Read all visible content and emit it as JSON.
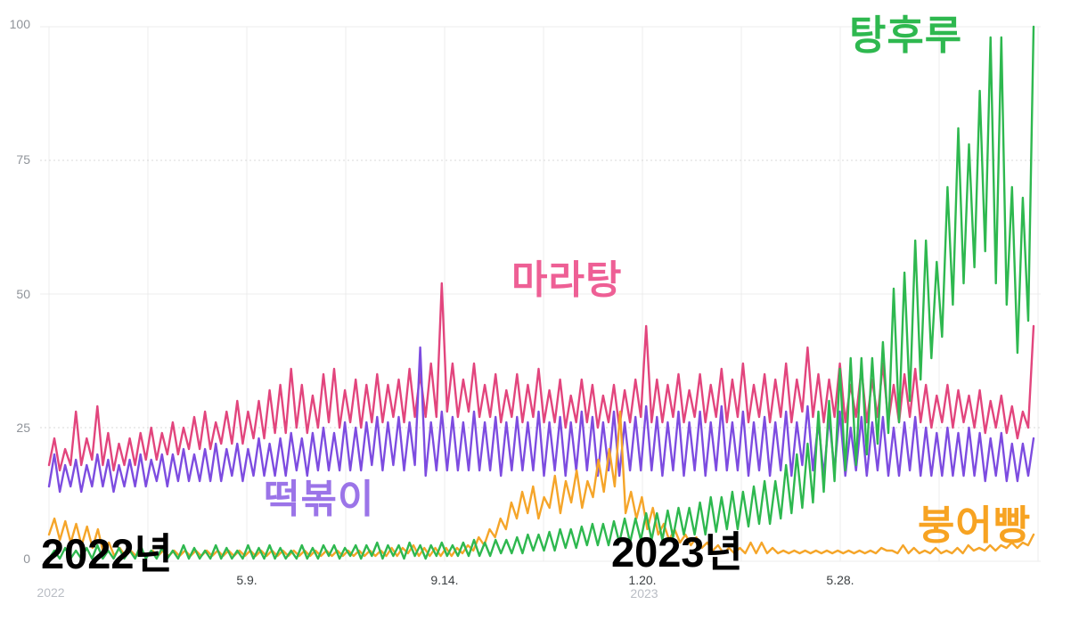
{
  "page": {
    "background": "#ffffff"
  },
  "chart_data": {
    "type": "line",
    "description": "Search-interest trend comparison of four Korean street foods, weekly oscillating daily data from start of 2022 to late 2023, scale 0-100",
    "grid": {
      "vertical_line_count": 11,
      "solid_color": "#ececec",
      "dashed_color": "#d8d8d8",
      "solid_levels": [
        0,
        50,
        100
      ],
      "dashed_levels": [
        25,
        75
      ]
    },
    "y_axis": {
      "min": 0,
      "max": 100,
      "tick_values": [
        100,
        75,
        50,
        25,
        0
      ],
      "ticks": [
        {
          "label": "100"
        },
        {
          "label": "75"
        },
        {
          "label": "50"
        },
        {
          "label": "25"
        },
        {
          "label": "0"
        }
      ]
    },
    "x_axis": {
      "ticks": [
        {
          "label": "5.9."
        },
        {
          "label": "9.14."
        },
        {
          "label": "1.20."
        },
        {
          "label": "5.28."
        }
      ],
      "year_labels": [
        {
          "label": "2022"
        },
        {
          "label": "2023"
        }
      ]
    },
    "series": [
      {
        "key": "malatang",
        "name": "마라탕",
        "color": "#e2457d",
        "weekly_low": [
          18,
          17,
          18,
          18,
          19,
          18,
          17,
          18,
          18,
          19,
          19,
          20,
          20,
          21,
          21,
          21,
          22,
          22,
          22,
          23,
          23,
          24,
          24,
          25,
          24,
          25,
          26,
          25,
          26,
          25,
          26,
          26,
          27,
          26,
          27,
          27,
          27,
          28,
          27,
          28,
          27,
          27,
          26,
          27,
          26,
          27,
          26,
          26,
          25,
          26,
          26,
          25,
          26,
          25,
          26,
          27,
          26,
          26,
          27,
          26,
          27,
          26,
          27,
          26,
          27,
          26,
          27,
          26,
          27,
          26,
          28,
          27,
          26,
          27,
          26,
          27,
          26,
          27,
          26,
          26,
          27,
          26,
          25,
          26,
          25,
          26,
          25,
          24,
          25,
          24,
          23,
          25
        ],
        "weekly_high": [
          23,
          21,
          28,
          23,
          29,
          24,
          22,
          23,
          24,
          25,
          24,
          26,
          25,
          27,
          28,
          26,
          28,
          30,
          28,
          30,
          32,
          33,
          36,
          33,
          31,
          35,
          36,
          32,
          34,
          33,
          35,
          33,
          34,
          36,
          35,
          37,
          52,
          37,
          34,
          37,
          33,
          35,
          32,
          35,
          33,
          36,
          32,
          34,
          31,
          34,
          33,
          31,
          33,
          32,
          34,
          44,
          34,
          33,
          35,
          32,
          35,
          33,
          36,
          34,
          37,
          33,
          35,
          34,
          37,
          34,
          40,
          35,
          34,
          37,
          33,
          36,
          34,
          37,
          33,
          35,
          36,
          33,
          31,
          33,
          32,
          31,
          32,
          30,
          31,
          29,
          28,
          44
        ]
      },
      {
        "key": "tteokbokki",
        "name": "떡볶이",
        "color": "#7d4ce0",
        "weekly_low": [
          14,
          13,
          14,
          13,
          14,
          14,
          13,
          14,
          14,
          14,
          15,
          14,
          15,
          15,
          15,
          15,
          15,
          16,
          15,
          16,
          16,
          16,
          16,
          17,
          16,
          17,
          17,
          17,
          17,
          17,
          18,
          17,
          18,
          17,
          18,
          16,
          17,
          17,
          17,
          17,
          17,
          17,
          16,
          17,
          17,
          17,
          16,
          17,
          16,
          17,
          17,
          16,
          17,
          16,
          17,
          17,
          17,
          16,
          17,
          16,
          17,
          16,
          17,
          17,
          17,
          16,
          17,
          16,
          17,
          16,
          18,
          17,
          16,
          17,
          16,
          17,
          16,
          17,
          16,
          16,
          17,
          16,
          16,
          16,
          16,
          16,
          16,
          15,
          16,
          15,
          15,
          16
        ],
        "weekly_high": [
          20,
          18,
          19,
          18,
          20,
          19,
          18,
          19,
          20,
          19,
          20,
          20,
          21,
          20,
          21,
          22,
          21,
          22,
          21,
          23,
          22,
          23,
          24,
          23,
          24,
          25,
          24,
          26,
          25,
          26,
          27,
          26,
          27,
          26,
          40,
          26,
          28,
          27,
          26,
          28,
          26,
          27,
          26,
          27,
          26,
          28,
          26,
          27,
          26,
          28,
          27,
          26,
          28,
          26,
          27,
          29,
          27,
          26,
          28,
          26,
          28,
          26,
          29,
          26,
          28,
          26,
          27,
          26,
          28,
          26,
          29,
          26,
          27,
          28,
          25,
          27,
          26,
          27,
          25,
          26,
          27,
          25,
          24,
          25,
          24,
          25,
          24,
          23,
          24,
          22,
          22,
          23
        ]
      },
      {
        "key": "bungeoppang",
        "name": "붕어빵",
        "color": "#f5a529",
        "weekly_low": [
          5,
          4,
          3.5,
          3,
          2.5,
          1.5,
          1,
          1,
          1,
          1,
          1,
          1,
          1,
          1,
          1,
          1,
          1,
          1,
          1,
          1,
          1,
          1,
          1,
          1,
          1,
          1,
          1,
          1,
          1,
          1,
          1,
          1,
          1,
          1.5,
          1,
          1,
          1,
          1,
          1.5,
          2,
          3,
          4.5,
          6,
          8,
          9,
          8,
          10,
          9,
          11,
          10,
          12,
          13,
          14,
          9,
          8,
          6,
          5,
          4,
          3.5,
          3,
          2.5,
          2,
          1.5,
          1.5,
          1.5,
          1.5,
          1.5,
          1.5,
          1.5,
          1.5,
          1.5,
          1.5,
          1.5,
          1.5,
          1.5,
          1.5,
          1.5,
          2,
          1.5,
          1.5,
          1.5,
          1.5,
          1.5,
          1.5,
          1.5,
          2,
          2,
          2,
          2.5,
          2.5,
          3
        ],
        "weekly_high": [
          8,
          7.5,
          7,
          6.5,
          6,
          3.5,
          2.5,
          2,
          2,
          2,
          2,
          2,
          2,
          2,
          2,
          2,
          2,
          2,
          2,
          2,
          2,
          2,
          2,
          2,
          2,
          2,
          2,
          2,
          2,
          2,
          2,
          2.5,
          2.5,
          3,
          2.5,
          2.5,
          2.5,
          2.5,
          3,
          4.5,
          6,
          8,
          11,
          13,
          14,
          12,
          16,
          15,
          17,
          15,
          19,
          21,
          28,
          13,
          12,
          10,
          7,
          6,
          5,
          4.5,
          3.5,
          3,
          2.5,
          2.5,
          3.5,
          3.5,
          2.5,
          2,
          2,
          2,
          2,
          2,
          2,
          2,
          2,
          2,
          2.5,
          2,
          3,
          2.5,
          2,
          2.5,
          2,
          2.5,
          3,
          2.5,
          3,
          3,
          3.5,
          3.5,
          5
        ]
      },
      {
        "key": "tanghulu",
        "name": "탕후루",
        "color": "#2eb84f",
        "weekly_low": [
          0.5,
          0.5,
          0.5,
          0.5,
          0.5,
          0.5,
          0.5,
          0.5,
          0.5,
          0.5,
          0.5,
          0.5,
          0.5,
          0.5,
          0.5,
          0.5,
          0.5,
          0.5,
          0.5,
          0.5,
          0.5,
          0.5,
          0.5,
          0.5,
          0.5,
          0.5,
          1,
          0.5,
          1,
          0.5,
          1,
          0.5,
          1,
          0.5,
          1,
          0.5,
          1,
          1,
          1,
          1,
          1,
          1,
          1.5,
          1.5,
          1.5,
          2,
          2,
          2,
          2.5,
          2.5,
          3,
          3,
          3,
          3.5,
          3.5,
          4,
          4,
          4,
          4.5,
          5,
          5,
          5,
          5.5,
          6,
          6,
          6.5,
          7,
          7,
          8,
          9,
          10,
          11,
          13,
          15,
          17,
          18,
          20,
          22,
          24,
          26,
          30,
          34,
          38,
          42,
          48,
          52,
          55,
          58,
          52,
          48,
          39,
          45
        ],
        "weekly_high": [
          2,
          2.5,
          2,
          2.5,
          3,
          2,
          2.5,
          2,
          3,
          2,
          2.5,
          2,
          3,
          2.5,
          2,
          3,
          2.5,
          2,
          3,
          2.5,
          3,
          2.5,
          2,
          3,
          2.5,
          3,
          3,
          2.5,
          3,
          3,
          3.5,
          3,
          3,
          3.5,
          3,
          3,
          3.5,
          3,
          3.5,
          4,
          3.5,
          4,
          4,
          4.5,
          5,
          5,
          5.5,
          6,
          6,
          6.5,
          7,
          7,
          7.5,
          8,
          8,
          9,
          9,
          9.5,
          10,
          10,
          11,
          12,
          12,
          13,
          13,
          14,
          15,
          15,
          18,
          20,
          22,
          28,
          30,
          36,
          38,
          38,
          38,
          41,
          51,
          54,
          60,
          60,
          56,
          70,
          81,
          78,
          88,
          98,
          98,
          70,
          68,
          100
        ]
      }
    ],
    "annotations": {
      "series_labels": [
        {
          "key": "tanghulu",
          "text": "탕후루",
          "color": "#2eb84f"
        },
        {
          "key": "malatang",
          "text": "마라탕",
          "color": "#ee5f95"
        },
        {
          "key": "tteokbokki",
          "text": "떡볶이",
          "color": "#9b74e8"
        },
        {
          "key": "bungeoppang",
          "text": "붕어빵",
          "color": "#f7a322"
        }
      ],
      "year_overlays": [
        {
          "text": "2022년"
        },
        {
          "text": "2023년"
        }
      ]
    }
  }
}
